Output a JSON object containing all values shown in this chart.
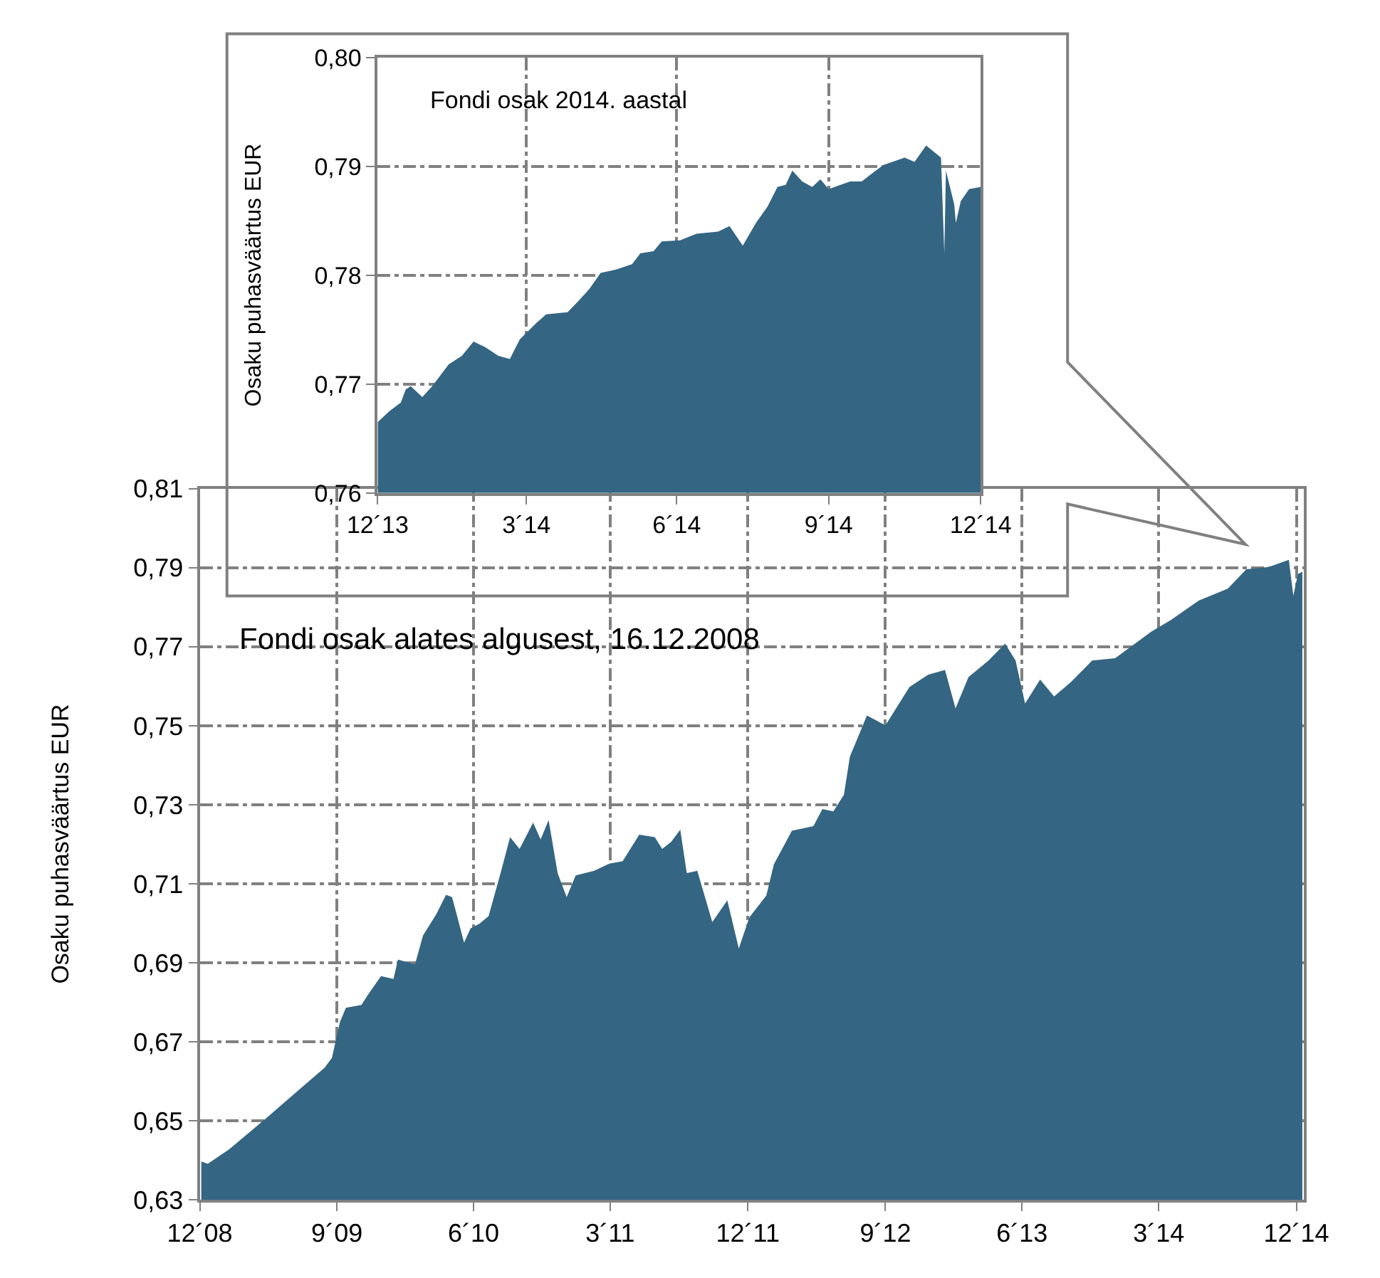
{
  "chart_data": [
    {
      "type": "area",
      "title": "Fondi osak 2014. aastal",
      "ylabel": "Osaku puhasväärtus EUR",
      "color": "#346582",
      "grid": true,
      "x": [
        "2013-12-31",
        "2014-01-07",
        "2014-01-14",
        "2014-01-17",
        "2014-01-20",
        "2014-01-27",
        "2014-02-02",
        "2014-02-12",
        "2014-02-20",
        "2014-02-27",
        "2014-03-06",
        "2014-03-14",
        "2014-03-21",
        "2014-03-27",
        "2014-04-06",
        "2014-04-12",
        "2014-04-25",
        "2014-05-02",
        "2014-05-08",
        "2014-05-15",
        "2014-05-24",
        "2014-06-03",
        "2014-06-08",
        "2014-06-16",
        "2014-06-21",
        "2014-07-02",
        "2014-07-12",
        "2014-07-25",
        "2014-08-01",
        "2014-08-09",
        "2014-08-17",
        "2014-08-24",
        "2014-08-30",
        "2014-09-04",
        "2014-09-08",
        "2014-09-14",
        "2014-09-20",
        "2014-09-25",
        "2014-09-30",
        "2014-10-13",
        "2014-10-20",
        "2014-10-25",
        "2014-11-02",
        "2014-11-15",
        "2014-11-21",
        "2014-11-28",
        "2014-12-07",
        "2014-12-09",
        "2014-12-10",
        "2014-12-15",
        "2014-12-16",
        "2014-12-19",
        "2014-12-24",
        "2014-12-31"
      ],
      "values": [
        0.7665,
        0.7675,
        0.7683,
        0.7695,
        0.7698,
        0.7688,
        0.7698,
        0.7718,
        0.7726,
        0.7739,
        0.7734,
        0.7726,
        0.7723,
        0.7741,
        0.7756,
        0.7764,
        0.7766,
        0.7777,
        0.7787,
        0.7802,
        0.7805,
        0.781,
        0.782,
        0.7822,
        0.7831,
        0.7832,
        0.7838,
        0.784,
        0.7845,
        0.7827,
        0.7848,
        0.7863,
        0.7881,
        0.7883,
        0.7896,
        0.7886,
        0.7881,
        0.7888,
        0.7879,
        0.7886,
        0.7886,
        0.7892,
        0.7901,
        0.7908,
        0.7904,
        0.7919,
        0.7908,
        0.782,
        0.7896,
        0.7865,
        0.7848,
        0.7868,
        0.7879,
        0.7881
      ],
      "xlim": [
        "2013-12-31",
        "2014-12-31"
      ],
      "xticks": [
        {
          "value": "2013-12-31",
          "label": "12´13"
        },
        {
          "value": "2014-03-31",
          "label": "3´14"
        },
        {
          "value": "2014-06-30",
          "label": "6´14"
        },
        {
          "value": "2014-09-30",
          "label": "9´14"
        },
        {
          "value": "2014-12-31",
          "label": "12´14"
        }
      ],
      "ylim": [
        0.76,
        0.8
      ],
      "yticks": [
        {
          "value": 0.76,
          "label": "0,76"
        },
        {
          "value": 0.77,
          "label": "0,77"
        },
        {
          "value": 0.78,
          "label": "0,78"
        },
        {
          "value": 0.79,
          "label": "0,79"
        },
        {
          "value": 0.8,
          "label": "0,80"
        }
      ]
    },
    {
      "type": "area",
      "title": "Fondi osak alates algusest, 16.12.2008",
      "ylabel": "Osaku puhasväärtus EUR",
      "color": "#346582",
      "grid": true,
      "x": [
        "2008-12-19",
        "2009-01-01",
        "2009-02-13",
        "2009-04-28",
        "2009-08-22",
        "2009-09-06",
        "2009-09-22",
        "2009-10-04",
        "2009-11-04",
        "2009-11-16",
        "2009-12-13",
        "2010-01-07",
        "2010-01-16",
        "2010-02-19",
        "2010-03-07",
        "2010-04-03",
        "2010-04-22",
        "2010-05-04",
        "2010-05-13",
        "2010-05-28",
        "2010-06-10",
        "2010-06-28",
        "2010-07-16",
        "2010-08-09",
        "2010-08-28",
        "2010-09-16",
        "2010-10-13",
        "2010-10-28",
        "2010-11-13",
        "2010-12-01",
        "2010-12-19",
        "2011-01-06",
        "2011-02-12",
        "2011-03-14",
        "2011-04-10",
        "2011-05-13",
        "2011-06-13",
        "2011-06-28",
        "2011-07-16",
        "2011-08-03",
        "2011-08-16",
        "2011-09-06",
        "2011-10-06",
        "2011-11-05",
        "2011-11-28",
        "2011-12-19",
        "2012-01-22",
        "2012-02-06",
        "2012-03-13",
        "2012-04-25",
        "2012-05-13",
        "2012-06-04",
        "2012-06-25",
        "2012-07-07",
        "2012-07-25",
        "2012-08-10",
        "2012-09-16",
        "2012-11-03",
        "2012-12-10",
        "2013-01-13",
        "2013-02-03",
        "2013-03-01",
        "2013-04-10",
        "2013-05-13",
        "2013-06-03",
        "2013-06-22",
        "2013-07-22",
        "2013-08-19",
        "2013-09-22",
        "2013-11-03",
        "2013-12-19",
        "2014-03-01",
        "2014-04-10",
        "2014-06-04",
        "2014-08-01",
        "2014-09-07",
        "2014-10-22",
        "2014-12-01",
        "2014-12-10",
        "2014-12-19",
        "2014-12-28"
      ],
      "values": [
        0.6397,
        0.6391,
        0.6428,
        0.6507,
        0.6634,
        0.6659,
        0.675,
        0.6786,
        0.6793,
        0.6817,
        0.6866,
        0.6859,
        0.6908,
        0.6896,
        0.6969,
        0.7024,
        0.7072,
        0.7066,
        0.7024,
        0.6951,
        0.6987,
        0.6999,
        0.7018,
        0.7127,
        0.7218,
        0.7188,
        0.7255,
        0.7212,
        0.7261,
        0.7127,
        0.7066,
        0.7121,
        0.7133,
        0.7151,
        0.7157,
        0.7224,
        0.7218,
        0.7188,
        0.7206,
        0.7237,
        0.7127,
        0.7133,
        0.7003,
        0.7058,
        0.6936,
        0.7015,
        0.707,
        0.7149,
        0.7234,
        0.7246,
        0.7289,
        0.7283,
        0.7325,
        0.7422,
        0.7477,
        0.7526,
        0.7501,
        0.7598,
        0.7629,
        0.7641,
        0.7544,
        0.7623,
        0.7665,
        0.7708,
        0.7665,
        0.7556,
        0.7617,
        0.7574,
        0.7611,
        0.7665,
        0.7671,
        0.7738,
        0.7768,
        0.7817,
        0.7847,
        0.7896,
        0.7902,
        0.792,
        0.7829,
        0.7884,
        0.789
      ],
      "xlim": [
        "2008-12-16",
        "2014-12-31"
      ],
      "xticks": [
        {
          "value": "2008-12-16",
          "label": "12´08"
        },
        {
          "value": "2009-09-16",
          "label": "9´09"
        },
        {
          "value": "2010-06-16",
          "label": "6´10"
        },
        {
          "value": "2011-03-16",
          "label": "3´11"
        },
        {
          "value": "2011-12-16",
          "label": "12´11"
        },
        {
          "value": "2012-09-16",
          "label": "9´12"
        },
        {
          "value": "2013-06-16",
          "label": "6´13"
        },
        {
          "value": "2014-03-16",
          "label": "3´14"
        },
        {
          "value": "2014-12-16",
          "label": "12´14"
        }
      ],
      "ylim": [
        0.63,
        0.81
      ],
      "yticks": [
        {
          "value": 0.63,
          "label": "0,63"
        },
        {
          "value": 0.65,
          "label": "0,65"
        },
        {
          "value": 0.67,
          "label": "0,67"
        },
        {
          "value": 0.69,
          "label": "0,69"
        },
        {
          "value": 0.71,
          "label": "0,71"
        },
        {
          "value": 0.73,
          "label": "0,73"
        },
        {
          "value": 0.75,
          "label": "0,75"
        },
        {
          "value": 0.77,
          "label": "0,77"
        },
        {
          "value": 0.79,
          "label": "0,79"
        },
        {
          "value": 0.81,
          "label": "0,81"
        }
      ]
    }
  ]
}
